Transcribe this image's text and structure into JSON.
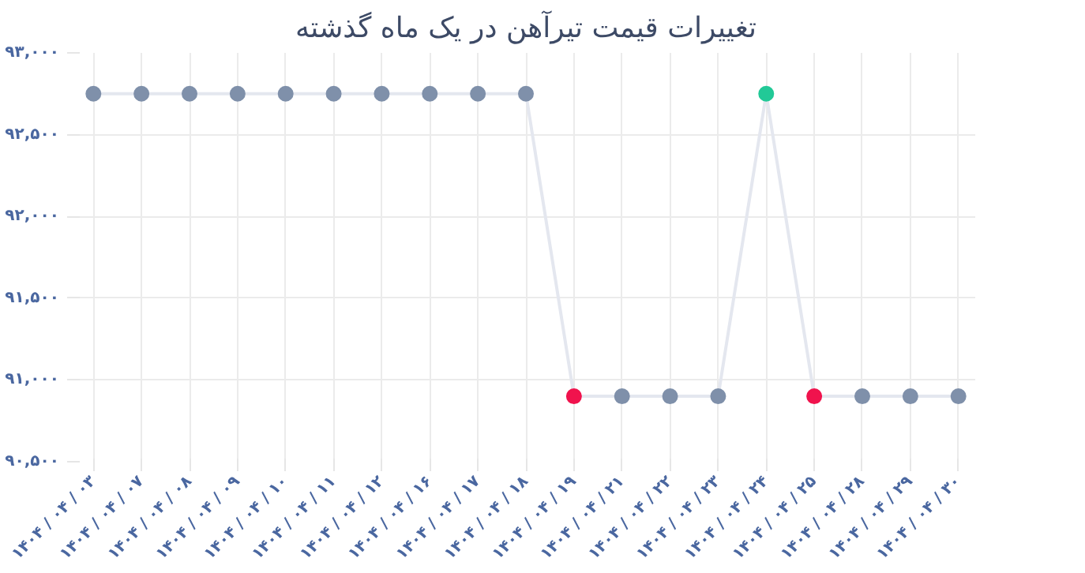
{
  "chart_data": {
    "type": "line",
    "title": "تغییرات قیمت تیرآهن در یک ماه گذشته",
    "categories": [
      "۱۴۰۴ / ۰۴ / ۰۳",
      "۱۴۰۴ / ۰۴ / ۰۷",
      "۱۴۰۴ / ۰۴ / ۰۸",
      "۱۴۰۴ / ۰۴ / ۰۹",
      "۱۴۰۴ / ۰۴ / ۱۰",
      "۱۴۰۴ / ۰۴ / ۱۱",
      "۱۴۰۴ / ۰۴ / ۱۲",
      "۱۴۰۴ / ۰۴ / ۱۶",
      "۱۴۰۴ / ۰۴ / ۱۷",
      "۱۴۰۴ / ۰۴ / ۱۸",
      "۱۴۰۴ / ۰۴ / ۱۹",
      "۱۴۰۴ / ۰۴ / ۲۱",
      "۱۴۰۴ / ۰۴ / ۲۲",
      "۱۴۰۴ / ۰۴ / ۲۳",
      "۱۴۰۴ / ۰۴ / ۲۴",
      "۱۴۰۴ / ۰۴ / ۲۵",
      "۱۴۰۴ / ۰۴ / ۲۸",
      "۱۴۰۴ / ۰۴ / ۲۹",
      "۱۴۰۴ / ۰۴ / ۳۰"
    ],
    "series": [
      {
        "color": "#e4e7ef",
        "values": [
          92750,
          92750,
          92750,
          92750,
          92750,
          92750,
          92750,
          92750,
          92750,
          92750,
          90900,
          90900,
          90900,
          90900,
          92750,
          90900,
          90900,
          90900,
          90900
        ],
        "colors": [
          "#7f90aa",
          "#7f90aa",
          "#7f90aa",
          "#7f90aa",
          "#7f90aa",
          "#7f90aa",
          "#7f90aa",
          "#7f90aa",
          "#7f90aa",
          "#7f90aa",
          "#f0134d",
          "#7f90aa",
          "#7f90aa",
          "#7f90aa",
          "#22c997",
          "#f0134d",
          "#7f90aa",
          "#7f90aa",
          "#7f90aa"
        ]
      }
    ],
    "ylim": [
      90500,
      93000
    ],
    "yticks": [
      {
        "value": 90500,
        "label": "۹۰,۵۰۰"
      },
      {
        "value": 91000,
        "label": "۹۱,۰۰۰"
      },
      {
        "value": 91500,
        "label": "۹۱,۵۰۰"
      },
      {
        "value": 92000,
        "label": "۹۲,۰۰۰"
      },
      {
        "value": 92500,
        "label": "۹۲,۵۰۰"
      },
      {
        "value": 93000,
        "label": "۹۳,۰۰۰"
      }
    ],
    "grid": true,
    "marker": "circle",
    "line_style": "solid"
  }
}
